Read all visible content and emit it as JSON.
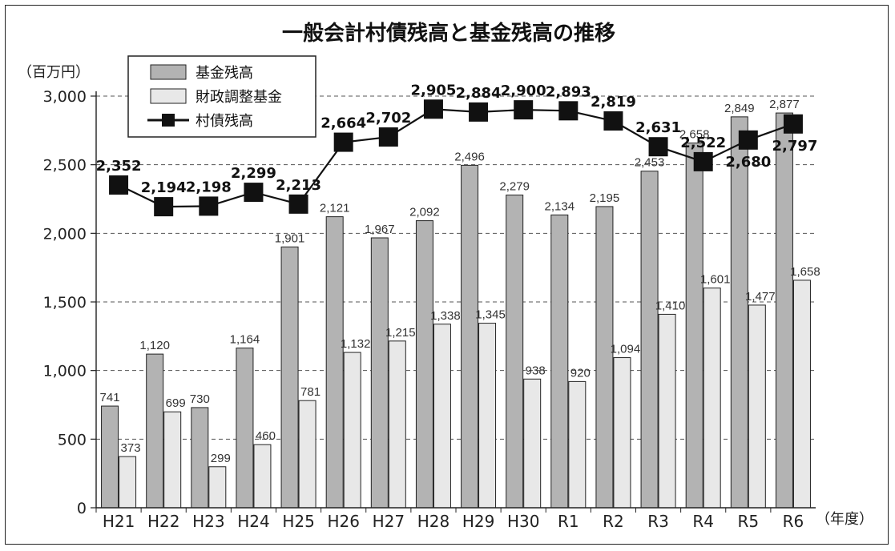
{
  "chart_data": {
    "type": "bar",
    "title": "一般会計村債残高と基金残高の推移",
    "ylabel": "（百万円）",
    "xlabel": "（年度）",
    "ylim": [
      0,
      3000
    ],
    "yticks": [
      0,
      500,
      1000,
      1500,
      2000,
      2500,
      3000
    ],
    "ytick_labels": [
      "0",
      "500",
      "1,000",
      "1,500",
      "2,000",
      "2,500",
      "3,000"
    ],
    "grid": "horizontal dashed",
    "legend_position": "top-left",
    "categories": [
      "H21",
      "H22",
      "H23",
      "H24",
      "H25",
      "H26",
      "H27",
      "H28",
      "H29",
      "H30",
      "R1",
      "R2",
      "R3",
      "R4",
      "R5",
      "R6"
    ],
    "series": [
      {
        "name": "基金残高",
        "type": "bar",
        "color": "#b3b3b3",
        "values": [
          741,
          1120,
          730,
          1164,
          1901,
          2121,
          1967,
          2092,
          2496,
          2279,
          2134,
          2195,
          2453,
          2658,
          2849,
          2877
        ],
        "labels": [
          "741",
          "1,120",
          "730",
          "1,164",
          "1,901",
          "2,121",
          "1,967",
          "2,092",
          "2,496",
          "2,279",
          "2,134",
          "2,195",
          "2,453",
          "2,658",
          "2,849",
          "2,877"
        ]
      },
      {
        "name": "財政調整基金",
        "type": "bar",
        "color": "#e8e8e8",
        "values": [
          373,
          699,
          299,
          460,
          781,
          1132,
          1215,
          1338,
          1345,
          938,
          920,
          1094,
          1410,
          1601,
          1477,
          1658
        ],
        "labels": [
          "373",
          "699",
          "299",
          "460",
          "781",
          "1,132",
          "1,215",
          "1,338",
          "1,345",
          "938",
          "920",
          "1,094",
          "1,410",
          "1,601",
          "1,477",
          "1,658"
        ]
      },
      {
        "name": "村債残高",
        "type": "line",
        "color": "#111111",
        "values": [
          2352,
          2194,
          2198,
          2299,
          2213,
          2664,
          2702,
          2905,
          2884,
          2900,
          2893,
          2819,
          2631,
          2522,
          2680,
          2797
        ],
        "labels": [
          "2,352",
          "2,194",
          "2,198",
          "2,299",
          "2,213",
          "2,664",
          "2,702",
          "2,905",
          "2,884",
          "2,900",
          "2,893",
          "2,819",
          "2,631",
          "2,522",
          "2,680",
          "2,797"
        ]
      }
    ]
  }
}
